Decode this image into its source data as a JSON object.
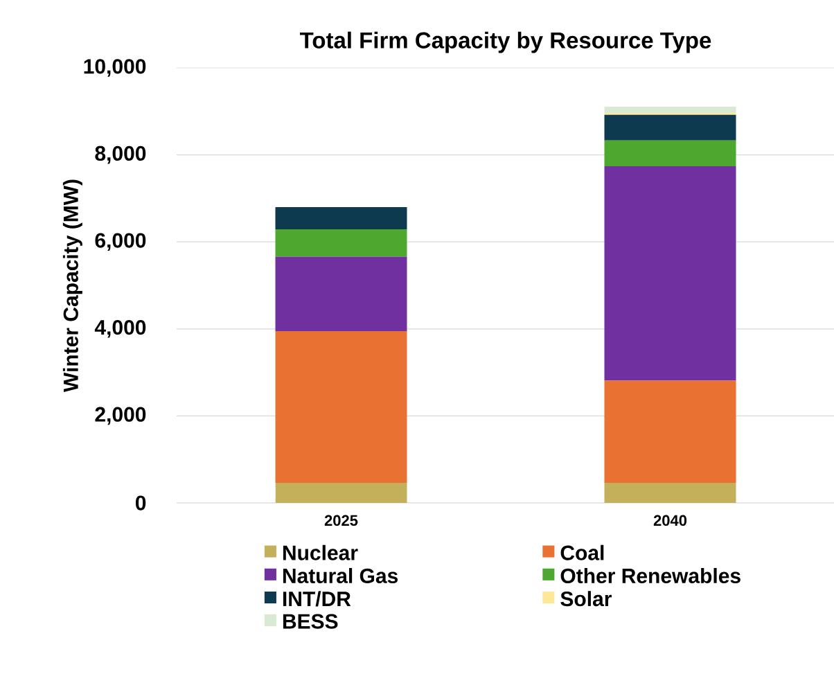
{
  "chart_data": {
    "type": "bar",
    "title": "Total Firm Capacity by Resource Type",
    "ylabel": "Winter Capacity (MW)",
    "categories": [
      "2025",
      "2040"
    ],
    "stacked": true,
    "series": [
      {
        "name": "Nuclear",
        "color": "#c4af5a",
        "values": [
          460,
          460
        ]
      },
      {
        "name": "Coal",
        "color": "#e97132",
        "values": [
          3490,
          2350
        ]
      },
      {
        "name": "Natural Gas",
        "color": "#7030a0",
        "values": [
          1710,
          4930
        ]
      },
      {
        "name": "Other Renewables",
        "color": "#4ea72e",
        "values": [
          630,
          590
        ]
      },
      {
        "name": "INT/DR",
        "color": "#0e3a4f",
        "values": [
          510,
          590
        ]
      },
      {
        "name": "Solar",
        "color": "#ffe699",
        "values": [
          0,
          40
        ]
      },
      {
        "name": "BESS",
        "color": "#d9ead3",
        "values": [
          0,
          150
        ]
      }
    ],
    "ylim": [
      0,
      10000
    ],
    "yticks": [
      {
        "value": 0,
        "label": "0"
      },
      {
        "value": 2000,
        "label": "2,000"
      },
      {
        "value": 4000,
        "label": "4,000"
      },
      {
        "value": 6000,
        "label": "6,000"
      },
      {
        "value": 8000,
        "label": "8,000"
      },
      {
        "value": 10000,
        "label": "10,000"
      }
    ],
    "grid": "y",
    "legend": "bottom"
  }
}
